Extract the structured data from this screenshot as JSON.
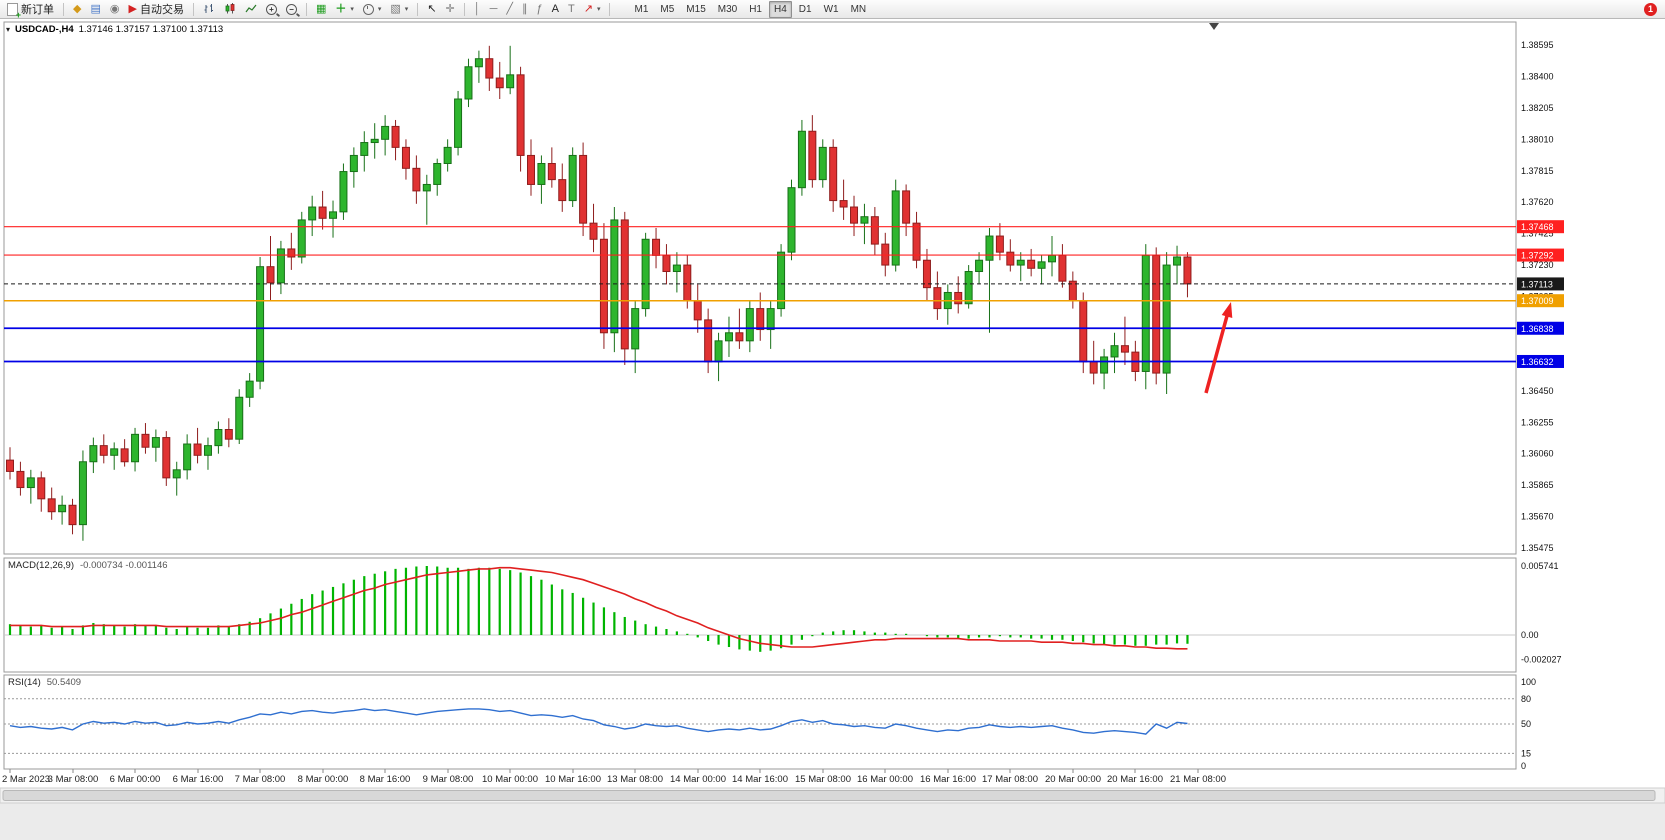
{
  "toolbar": {
    "new_order": "新订单",
    "auto_trading": "自动交易",
    "timeframes": [
      "M1",
      "M5",
      "M15",
      "M30",
      "H1",
      "H4",
      "D1",
      "W1",
      "MN"
    ],
    "active_timeframe": "H4",
    "notification_count": "1"
  },
  "chart_data": {
    "type": "candlestick",
    "symbol": "USDCAD",
    "timeframe": "H4",
    "title": "USDCAD-,H4",
    "ohlc_line": "1.37146 1.37157 1.37100 1.37113",
    "price_max": 1.38595,
    "price_min": 1.35475,
    "price_axis_labels": [
      "1.38595",
      "1.38400",
      "1.38205",
      "1.38010",
      "1.37815",
      "1.37620",
      "1.37425",
      "1.37230",
      "1.37035",
      "1.36840",
      "1.36645",
      "1.36450",
      "1.36255",
      "1.36060",
      "1.35865",
      "1.35670",
      "1.35475"
    ],
    "colors": {
      "up": "#2eb52e",
      "down": "#e03232",
      "up_border": "#177017",
      "down_border": "#8f1d1d"
    },
    "levels": [
      {
        "value": 1.37468,
        "label": "1.37468",
        "color": "#ff2020",
        "lw": 1.2,
        "dashed": false
      },
      {
        "value": 1.37292,
        "label": "1.37292",
        "color": "#ff2020",
        "lw": 1.2,
        "dashed": false
      },
      {
        "value": 1.37113,
        "label": "1.37113",
        "color": "#1a1a1a",
        "lw": 1,
        "dashed": true
      },
      {
        "value": 1.37009,
        "label": "1.37009",
        "color": "#f0a000",
        "lw": 1.5,
        "dashed": false
      },
      {
        "value": 1.36838,
        "label": "1.36838",
        "color": "#0000e6",
        "lw": 1.8,
        "dashed": false
      },
      {
        "value": 1.36632,
        "label": "1.36632",
        "color": "#0000e6",
        "lw": 1.8,
        "dashed": false
      }
    ],
    "time_labels": [
      "2 Mar 2023",
      "3 Mar 08:00",
      "6 Mar 00:00",
      "6 Mar 16:00",
      "7 Mar 08:00",
      "8 Mar 00:00",
      "8 Mar 16:00",
      "9 Mar 08:00",
      "10 Mar 00:00",
      "10 Mar 16:00",
      "13 Mar 08:00",
      "14 Mar 00:00",
      "14 Mar 16:00",
      "15 Mar 08:00",
      "16 Mar 00:00",
      "16 Mar 16:00",
      "17 Mar 08:00",
      "20 Mar 00:00",
      "20 Mar 16:00",
      "21 Mar 08:00"
    ],
    "time_label_x": [
      10,
      73,
      135,
      198,
      260,
      323,
      385,
      448,
      510,
      573,
      635,
      698,
      760,
      823,
      885,
      948,
      1010,
      1073,
      1135,
      1198
    ],
    "candles": [
      [
        1.3602,
        1.361,
        1.359,
        1.3595
      ],
      [
        1.3595,
        1.3601,
        1.358,
        1.3585
      ],
      [
        1.3585,
        1.3596,
        1.3575,
        1.3591
      ],
      [
        1.3591,
        1.3595,
        1.357,
        1.3578
      ],
      [
        1.3578,
        1.3585,
        1.3565,
        1.357
      ],
      [
        1.357,
        1.358,
        1.3562,
        1.3574
      ],
      [
        1.3574,
        1.3578,
        1.3556,
        1.3562
      ],
      [
        1.3562,
        1.3608,
        1.3552,
        1.3601
      ],
      [
        1.3601,
        1.3616,
        1.3594,
        1.3611
      ],
      [
        1.3611,
        1.3618,
        1.36,
        1.3605
      ],
      [
        1.3605,
        1.3613,
        1.3596,
        1.3609
      ],
      [
        1.3609,
        1.3615,
        1.3598,
        1.3601
      ],
      [
        1.3601,
        1.3622,
        1.3595,
        1.3618
      ],
      [
        1.3618,
        1.3625,
        1.3606,
        1.361
      ],
      [
        1.361,
        1.3621,
        1.3601,
        1.3616
      ],
      [
        1.3616,
        1.362,
        1.3586,
        1.3591
      ],
      [
        1.3591,
        1.3601,
        1.358,
        1.3596
      ],
      [
        1.3596,
        1.3618,
        1.359,
        1.3612
      ],
      [
        1.3612,
        1.3622,
        1.36,
        1.3605
      ],
      [
        1.3605,
        1.3616,
        1.3596,
        1.3611
      ],
      [
        1.3611,
        1.3626,
        1.3606,
        1.3621
      ],
      [
        1.3621,
        1.3628,
        1.361,
        1.3615
      ],
      [
        1.3615,
        1.3646,
        1.3612,
        1.3641
      ],
      [
        1.3641,
        1.3656,
        1.3635,
        1.3651
      ],
      [
        1.3651,
        1.3728,
        1.3646,
        1.3722
      ],
      [
        1.3722,
        1.3741,
        1.3701,
        1.3712
      ],
      [
        1.3712,
        1.3738,
        1.3705,
        1.3733
      ],
      [
        1.3733,
        1.3743,
        1.372,
        1.3728
      ],
      [
        1.3728,
        1.3756,
        1.3724,
        1.3751
      ],
      [
        1.3751,
        1.3766,
        1.3741,
        1.3759
      ],
      [
        1.3759,
        1.3769,
        1.3745,
        1.3752
      ],
      [
        1.3752,
        1.3763,
        1.374,
        1.3756
      ],
      [
        1.3756,
        1.3786,
        1.3751,
        1.3781
      ],
      [
        1.3781,
        1.3796,
        1.3771,
        1.3791
      ],
      [
        1.3791,
        1.3806,
        1.3781,
        1.3799
      ],
      [
        1.3799,
        1.3811,
        1.3789,
        1.3801
      ],
      [
        1.3801,
        1.3816,
        1.3791,
        1.3809
      ],
      [
        1.3809,
        1.3813,
        1.3788,
        1.3796
      ],
      [
        1.3796,
        1.3801,
        1.3776,
        1.3783
      ],
      [
        1.3783,
        1.3791,
        1.3761,
        1.3769
      ],
      [
        1.3769,
        1.3779,
        1.3748,
        1.3773
      ],
      [
        1.3773,
        1.3789,
        1.3766,
        1.3786
      ],
      [
        1.3786,
        1.3801,
        1.3781,
        1.3796
      ],
      [
        1.3796,
        1.3831,
        1.3791,
        1.3826
      ],
      [
        1.3826,
        1.3851,
        1.3821,
        1.3846
      ],
      [
        1.3846,
        1.3856,
        1.3836,
        1.3851
      ],
      [
        1.3851,
        1.3859,
        1.3831,
        1.3839
      ],
      [
        1.3839,
        1.3849,
        1.3826,
        1.3833
      ],
      [
        1.3833,
        1.3859,
        1.3829,
        1.3841
      ],
      [
        1.3841,
        1.3846,
        1.3781,
        1.3791
      ],
      [
        1.3791,
        1.3801,
        1.3766,
        1.3773
      ],
      [
        1.3773,
        1.3791,
        1.3761,
        1.3786
      ],
      [
        1.3786,
        1.3796,
        1.3771,
        1.3776
      ],
      [
        1.3776,
        1.3786,
        1.3756,
        1.3763
      ],
      [
        1.3763,
        1.3796,
        1.3759,
        1.3791
      ],
      [
        1.3791,
        1.3799,
        1.3741,
        1.3749
      ],
      [
        1.3749,
        1.3761,
        1.3731,
        1.3739
      ],
      [
        1.3739,
        1.3749,
        1.3671,
        1.3681
      ],
      [
        1.3681,
        1.3759,
        1.3669,
        1.3751
      ],
      [
        1.3751,
        1.3756,
        1.3661,
        1.3671
      ],
      [
        1.3671,
        1.3701,
        1.3656,
        1.3696
      ],
      [
        1.3696,
        1.3743,
        1.3691,
        1.3739
      ],
      [
        1.3739,
        1.3746,
        1.3721,
        1.3729
      ],
      [
        1.3729,
        1.3736,
        1.3711,
        1.3719
      ],
      [
        1.3719,
        1.3731,
        1.3706,
        1.3723
      ],
      [
        1.3723,
        1.3729,
        1.3696,
        1.3701
      ],
      [
        1.3701,
        1.3711,
        1.3681,
        1.3689
      ],
      [
        1.3689,
        1.3696,
        1.3656,
        1.3663
      ],
      [
        1.3663,
        1.3681,
        1.3651,
        1.3676
      ],
      [
        1.3676,
        1.3691,
        1.3666,
        1.3681
      ],
      [
        1.3681,
        1.3696,
        1.3671,
        1.3676
      ],
      [
        1.3676,
        1.3701,
        1.3669,
        1.3696
      ],
      [
        1.3696,
        1.3706,
        1.3676,
        1.3683
      ],
      [
        1.3683,
        1.3701,
        1.3671,
        1.3696
      ],
      [
        1.3696,
        1.3736,
        1.3691,
        1.3731
      ],
      [
        1.3731,
        1.3776,
        1.3726,
        1.3771
      ],
      [
        1.3771,
        1.3813,
        1.3766,
        1.3806
      ],
      [
        1.3806,
        1.3816,
        1.3771,
        1.3776
      ],
      [
        1.3776,
        1.3801,
        1.3771,
        1.3796
      ],
      [
        1.3796,
        1.3801,
        1.3756,
        1.3763
      ],
      [
        1.3763,
        1.3776,
        1.3751,
        1.3759
      ],
      [
        1.3759,
        1.3766,
        1.3741,
        1.3749
      ],
      [
        1.3749,
        1.3761,
        1.3736,
        1.3753
      ],
      [
        1.3753,
        1.3759,
        1.3729,
        1.3736
      ],
      [
        1.3736,
        1.3743,
        1.3716,
        1.3723
      ],
      [
        1.3723,
        1.3776,
        1.3719,
        1.3769
      ],
      [
        1.3769,
        1.3773,
        1.3741,
        1.3749
      ],
      [
        1.3749,
        1.3756,
        1.3721,
        1.3726
      ],
      [
        1.3726,
        1.3733,
        1.3701,
        1.3709
      ],
      [
        1.3709,
        1.3719,
        1.3689,
        1.3696
      ],
      [
        1.3696,
        1.3711,
        1.3686,
        1.3706
      ],
      [
        1.3706,
        1.3716,
        1.3693,
        1.3699
      ],
      [
        1.3699,
        1.3723,
        1.3696,
        1.3719
      ],
      [
        1.3719,
        1.3731,
        1.3711,
        1.3726
      ],
      [
        1.3726,
        1.3746,
        1.3681,
        1.3741
      ],
      [
        1.3741,
        1.3749,
        1.3726,
        1.3731
      ],
      [
        1.3731,
        1.3739,
        1.3719,
        1.3723
      ],
      [
        1.3723,
        1.3731,
        1.3713,
        1.3726
      ],
      [
        1.3726,
        1.3733,
        1.3716,
        1.3721
      ],
      [
        1.3721,
        1.3729,
        1.3711,
        1.3725
      ],
      [
        1.3725,
        1.3741,
        1.3716,
        1.3729
      ],
      [
        1.3729,
        1.3736,
        1.3709,
        1.3713
      ],
      [
        1.3713,
        1.3719,
        1.3696,
        1.3701
      ],
      [
        1.3701,
        1.3706,
        1.3656,
        1.3663
      ],
      [
        1.3663,
        1.3676,
        1.3649,
        1.3656
      ],
      [
        1.3656,
        1.3671,
        1.3646,
        1.3666
      ],
      [
        1.3666,
        1.3681,
        1.3656,
        1.3673
      ],
      [
        1.3673,
        1.3691,
        1.3661,
        1.3669
      ],
      [
        1.3669,
        1.3676,
        1.3651,
        1.3657
      ],
      [
        1.3657,
        1.3736,
        1.3646,
        1.3729
      ],
      [
        1.3729,
        1.3734,
        1.3649,
        1.3656
      ],
      [
        1.3656,
        1.3731,
        1.3643,
        1.3723
      ],
      [
        1.3723,
        1.3735,
        1.3711,
        1.3728
      ],
      [
        1.3728,
        1.3731,
        1.3703,
        1.37113
      ]
    ],
    "indicators": {
      "macd": {
        "header": "MACD(12,26,9)",
        "values": "-0.000734 -0.001146",
        "axis_top": "0.005741",
        "axis_zero": "0.00",
        "axis_bottom": "-0.002027",
        "max": 0.005741,
        "min": -0.002027,
        "histogram_color": "#00b400",
        "signal_color": "#e02020",
        "histogram": [
          0.0009,
          0.0008,
          0.0007,
          0.0008,
          0.0006,
          0.0007,
          0.0005,
          0.0008,
          0.001,
          0.0009,
          0.0008,
          0.0007,
          0.0009,
          0.0008,
          0.0008,
          0.0006,
          0.0005,
          0.0007,
          0.0006,
          0.0006,
          0.0008,
          0.0007,
          0.0009,
          0.0011,
          0.0014,
          0.0018,
          0.0022,
          0.0026,
          0.003,
          0.0034,
          0.0037,
          0.004,
          0.0043,
          0.0046,
          0.0049,
          0.0051,
          0.0053,
          0.0055,
          0.0056,
          0.0057,
          0.00574,
          0.0057,
          0.0056,
          0.0056,
          0.0055,
          0.0056,
          0.0056,
          0.0055,
          0.0054,
          0.0052,
          0.0049,
          0.0046,
          0.0042,
          0.0038,
          0.0035,
          0.0031,
          0.0027,
          0.0023,
          0.0019,
          0.0015,
          0.0012,
          0.0009,
          0.0007,
          0.0005,
          0.0003,
          0.0001,
          -0.0002,
          -0.0005,
          -0.0008,
          -0.001,
          -0.0012,
          -0.0013,
          -0.0014,
          -0.0013,
          -0.0011,
          -0.0008,
          -0.0004,
          -0.0001,
          0.0002,
          0.0003,
          0.0004,
          0.0004,
          0.0003,
          0.0002,
          0.0002,
          0.0001,
          0.0001,
          0.0,
          -0.0001,
          -0.0002,
          -0.0002,
          -0.0003,
          -0.0003,
          -0.0002,
          -0.0002,
          -0.0001,
          -0.0002,
          -0.0002,
          -0.0003,
          -0.0003,
          -0.0004,
          -0.0004,
          -0.0005,
          -0.0006,
          -0.0007,
          -0.0008,
          -0.0008,
          -0.0008,
          -0.0009,
          -0.0009,
          -0.0008,
          -0.0008,
          -0.0007,
          -0.00073
        ],
        "signal": [
          0.0008,
          0.0008,
          0.0008,
          0.0008,
          0.0007,
          0.0007,
          0.0007,
          0.0007,
          0.0008,
          0.0008,
          0.0008,
          0.0008,
          0.0008,
          0.0008,
          0.0008,
          0.0007,
          0.0007,
          0.0007,
          0.0007,
          0.0007,
          0.0007,
          0.0007,
          0.0008,
          0.0009,
          0.001,
          0.0012,
          0.0014,
          0.0017,
          0.0019,
          0.0022,
          0.0025,
          0.0028,
          0.0031,
          0.0034,
          0.0037,
          0.0039,
          0.0042,
          0.0044,
          0.0046,
          0.0048,
          0.005,
          0.0051,
          0.0052,
          0.0053,
          0.0054,
          0.0055,
          0.0055,
          0.0056,
          0.0056,
          0.0055,
          0.0054,
          0.0053,
          0.0052,
          0.005,
          0.0048,
          0.0046,
          0.0043,
          0.004,
          0.0037,
          0.0034,
          0.003,
          0.0027,
          0.0023,
          0.002,
          0.0016,
          0.0013,
          0.001,
          0.0006,
          0.0003,
          0.0,
          -0.0003,
          -0.0005,
          -0.0007,
          -0.0008,
          -0.0009,
          -0.001,
          -0.001,
          -0.001,
          -0.0009,
          -0.0008,
          -0.0007,
          -0.0006,
          -0.0005,
          -0.0004,
          -0.0004,
          -0.0003,
          -0.0003,
          -0.0003,
          -0.0003,
          -0.0003,
          -0.0003,
          -0.0003,
          -0.0004,
          -0.0004,
          -0.0004,
          -0.0005,
          -0.0005,
          -0.0005,
          -0.0005,
          -0.0006,
          -0.0006,
          -0.0006,
          -0.0007,
          -0.0007,
          -0.0008,
          -0.0008,
          -0.0009,
          -0.0009,
          -0.001,
          -0.001,
          -0.0011,
          -0.0011,
          -0.00115,
          -0.001146
        ]
      },
      "rsi": {
        "header": "RSI(14)",
        "value": "50.5409",
        "axis": [
          "100",
          "80",
          "50",
          "15",
          "0"
        ],
        "axis_values": [
          100,
          80,
          50,
          15,
          0
        ],
        "levels": [
          80,
          50,
          15
        ],
        "line_color": "#2f6fd0",
        "values": [
          48,
          46,
          47,
          45,
          44,
          46,
          43,
          50,
          53,
          51,
          52,
          50,
          53,
          51,
          52,
          48,
          49,
          52,
          50,
          51,
          53,
          51,
          55,
          58,
          62,
          61,
          64,
          62,
          65,
          66,
          64,
          63,
          65,
          66,
          68,
          66,
          67,
          65,
          63,
          61,
          63,
          65,
          66,
          67,
          68,
          68,
          67,
          65,
          66,
          63,
          60,
          61,
          60,
          58,
          60,
          56,
          54,
          49,
          47,
          44,
          46,
          50,
          48,
          47,
          48,
          45,
          43,
          41,
          43,
          44,
          43,
          45,
          43,
          44,
          48,
          53,
          55,
          52,
          54,
          50,
          49,
          47,
          48,
          46,
          45,
          50,
          48,
          45,
          43,
          41,
          43,
          42,
          45,
          46,
          49,
          47,
          46,
          47,
          46,
          47,
          48,
          45,
          43,
          40,
          39,
          41,
          42,
          41,
          40,
          38,
          50,
          45,
          52,
          50.54
        ]
      }
    },
    "annotation_arrow": {
      "color": "#ee2222"
    }
  }
}
